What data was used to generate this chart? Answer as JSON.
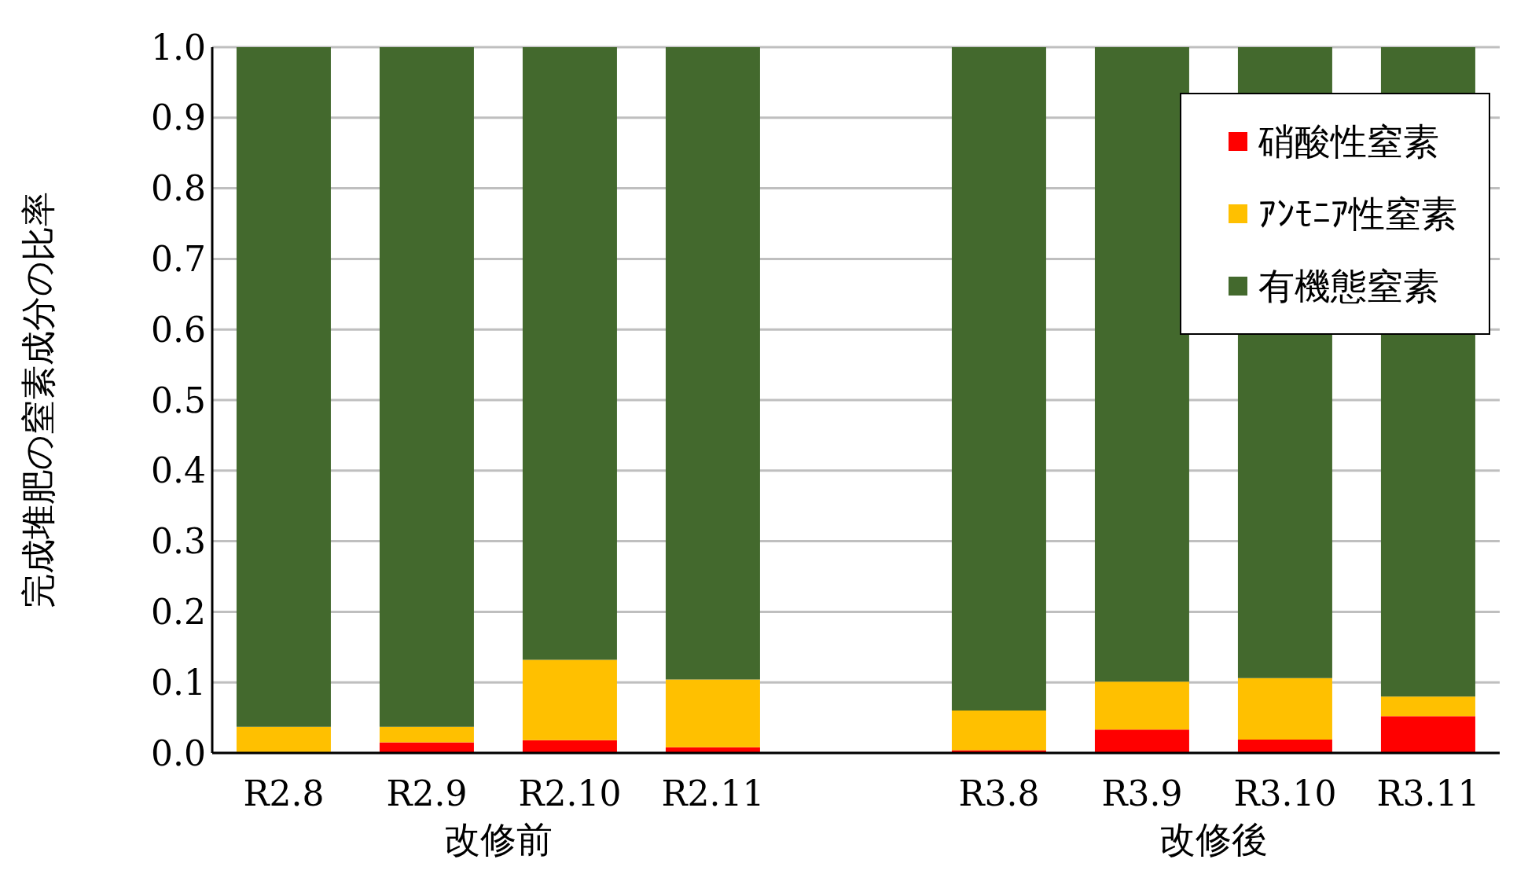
{
  "chart_data": {
    "type": "bar",
    "stacked": true,
    "ylabel": "完成堆肥の窒素成分の比率",
    "categories": [
      "R2.8",
      "R2.9",
      "R2.10",
      "R2.11",
      null,
      "R3.8",
      "R3.9",
      "R3.10",
      "R3.11"
    ],
    "series": [
      {
        "name": "硝酸性窒素",
        "color": "#ff0000",
        "values": [
          0,
          0.015,
          0.018,
          0.008,
          null,
          0.004,
          0.033,
          0.019,
          0.052
        ]
      },
      {
        "name": "ｱﾝﾓﾆｱ性窒素",
        "color": "#ffc000",
        "values": [
          0.037,
          0.022,
          0.114,
          0.096,
          null,
          0.056,
          0.068,
          0.087,
          0.028
        ]
      },
      {
        "name": "有機態窒素",
        "color": "#43692d",
        "values": [
          0.963,
          0.963,
          0.868,
          0.896,
          null,
          0.94,
          0.899,
          0.894,
          0.92
        ]
      }
    ],
    "ylim": [
      0,
      1
    ],
    "yticks": [
      {
        "value": 0,
        "label": "0.0"
      },
      {
        "value": 0.1,
        "label": "0.1"
      },
      {
        "value": 0.2,
        "label": "0.2"
      },
      {
        "value": 0.3,
        "label": "0.3"
      },
      {
        "value": 0.4,
        "label": "0.4"
      },
      {
        "value": 0.5,
        "label": "0.5"
      },
      {
        "value": 0.6,
        "label": "0.6"
      },
      {
        "value": 0.7,
        "label": "0.7"
      },
      {
        "value": 0.8,
        "label": "0.8"
      },
      {
        "value": 0.9,
        "label": "0.9"
      },
      {
        "value": 1,
        "label": "1.0"
      }
    ],
    "grid": "y",
    "legend": "top right",
    "annotations": [
      "改修前",
      "改修後"
    ]
  }
}
